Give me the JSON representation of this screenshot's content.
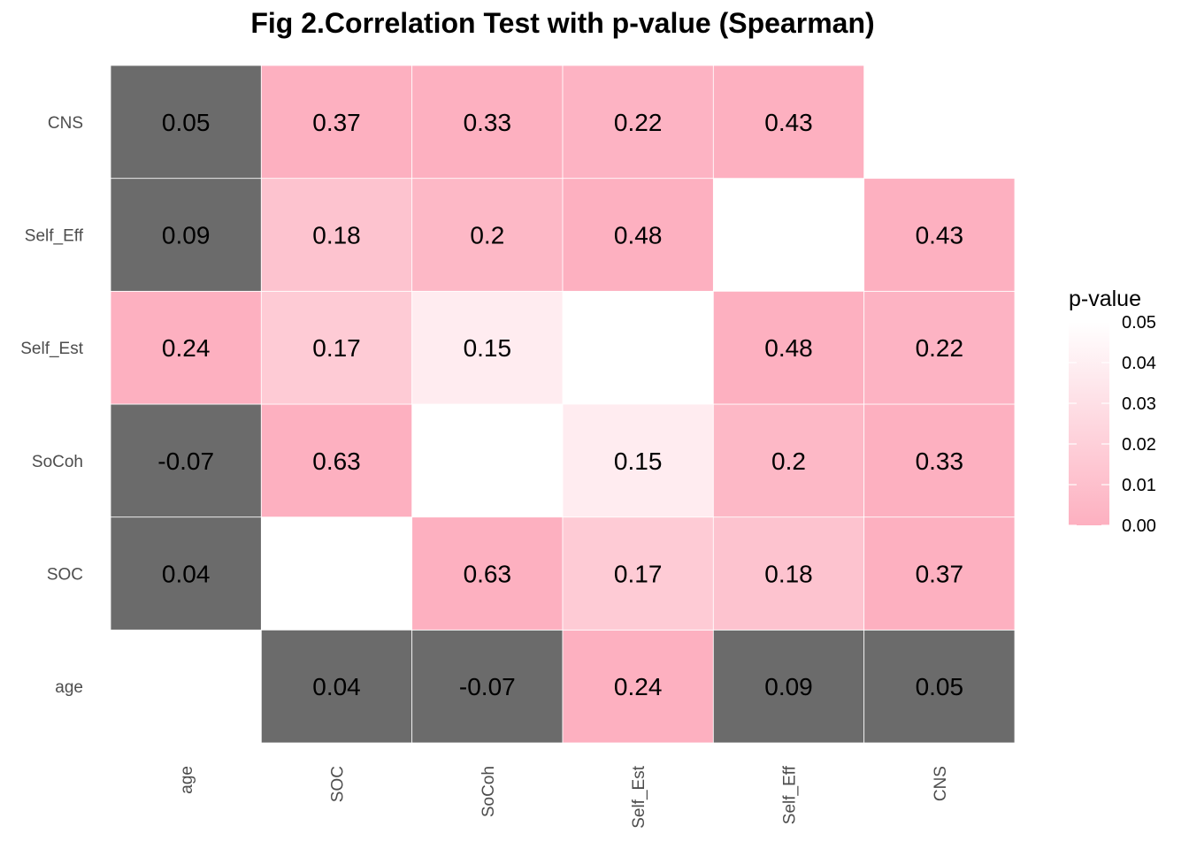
{
  "chart_data": {
    "type": "heatmap",
    "title": "Fig 2.Correlation Test with p-value (Spearman)",
    "variables": [
      "age",
      "SOC",
      "SoCoh",
      "Self_Est",
      "Self_Eff",
      "CNS"
    ],
    "x_categories": [
      "age",
      "SOC",
      "SoCoh",
      "Self_Est",
      "Self_Eff",
      "CNS"
    ],
    "y_categories_bottom_to_top": [
      "age",
      "SOC",
      "SoCoh",
      "Self_Est",
      "Self_Eff",
      "CNS"
    ],
    "cells": [
      {
        "x": "SOC",
        "y": "age",
        "r": "0.04",
        "p": null
      },
      {
        "x": "SoCoh",
        "y": "age",
        "r": "-0.07",
        "p": null
      },
      {
        "x": "Self_Est",
        "y": "age",
        "r": "0.24",
        "p": 0.0
      },
      {
        "x": "Self_Eff",
        "y": "age",
        "r": "0.09",
        "p": null
      },
      {
        "x": "CNS",
        "y": "age",
        "r": "0.05",
        "p": null
      },
      {
        "x": "age",
        "y": "SOC",
        "r": "0.04",
        "p": null
      },
      {
        "x": "SoCoh",
        "y": "SOC",
        "r": "0.63",
        "p": 0.0
      },
      {
        "x": "Self_Est",
        "y": "SOC",
        "r": "0.17",
        "p": 0.017
      },
      {
        "x": "Self_Eff",
        "y": "SOC",
        "r": "0.18",
        "p": 0.012
      },
      {
        "x": "CNS",
        "y": "SOC",
        "r": "0.37",
        "p": 0.0
      },
      {
        "x": "age",
        "y": "SoCoh",
        "r": "-0.07",
        "p": null
      },
      {
        "x": "SOC",
        "y": "SoCoh",
        "r": "0.63",
        "p": 0.0
      },
      {
        "x": "Self_Est",
        "y": "SoCoh",
        "r": "0.15",
        "p": 0.038
      },
      {
        "x": "Self_Eff",
        "y": "SoCoh",
        "r": "0.2",
        "p": 0.005
      },
      {
        "x": "CNS",
        "y": "SoCoh",
        "r": "0.33",
        "p": 0.0
      },
      {
        "x": "age",
        "y": "Self_Est",
        "r": "0.24",
        "p": 0.0
      },
      {
        "x": "SOC",
        "y": "Self_Est",
        "r": "0.17",
        "p": 0.017
      },
      {
        "x": "SoCoh",
        "y": "Self_Est",
        "r": "0.15",
        "p": 0.038
      },
      {
        "x": "Self_Eff",
        "y": "Self_Est",
        "r": "0.48",
        "p": 0.0
      },
      {
        "x": "CNS",
        "y": "Self_Est",
        "r": "0.22",
        "p": 0.002
      },
      {
        "x": "age",
        "y": "Self_Eff",
        "r": "0.09",
        "p": null
      },
      {
        "x": "SOC",
        "y": "Self_Eff",
        "r": "0.18",
        "p": 0.012
      },
      {
        "x": "SoCoh",
        "y": "Self_Eff",
        "r": "0.2",
        "p": 0.005
      },
      {
        "x": "Self_Est",
        "y": "Self_Eff",
        "r": "0.48",
        "p": 0.0
      },
      {
        "x": "CNS",
        "y": "Self_Eff",
        "r": "0.43",
        "p": 0.0
      },
      {
        "x": "age",
        "y": "CNS",
        "r": "0.05",
        "p": null
      },
      {
        "x": "SOC",
        "y": "CNS",
        "r": "0.37",
        "p": 0.0
      },
      {
        "x": "SoCoh",
        "y": "CNS",
        "r": "0.33",
        "p": 0.0
      },
      {
        "x": "Self_Est",
        "y": "CNS",
        "r": "0.22",
        "p": 0.002
      },
      {
        "x": "Self_Eff",
        "y": "CNS",
        "r": "0.43",
        "p": 0.0
      }
    ],
    "legend": {
      "title": "p-value",
      "placement": "right",
      "ticks": [
        "0.05",
        "0.04",
        "0.03",
        "0.02",
        "0.01",
        "0.00"
      ],
      "range": [
        0.0,
        0.05
      ],
      "low_color": "#fdb0c0",
      "high_color": "#ffffff"
    },
    "na_color": "#6b6b6b",
    "grid": false
  }
}
